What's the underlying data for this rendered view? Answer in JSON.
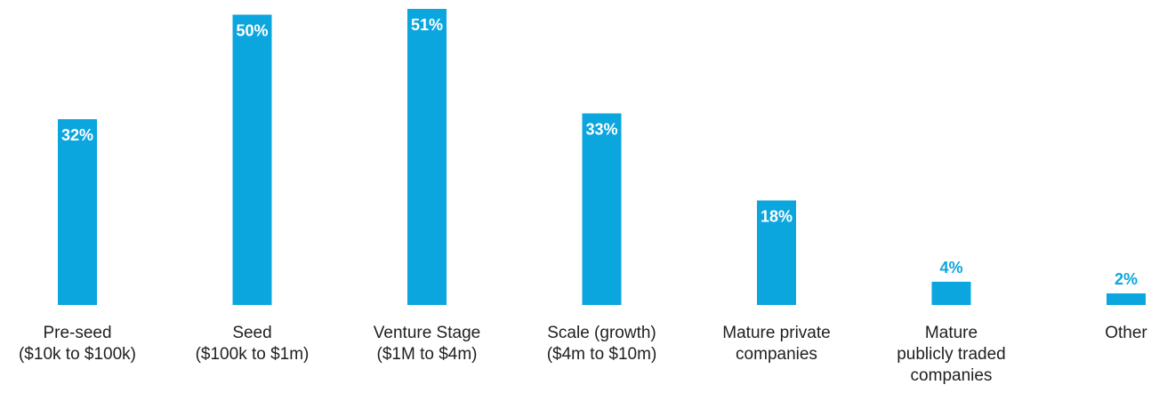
{
  "chart_data": {
    "type": "bar",
    "categories": [
      [
        "Pre-seed",
        "($10k to $100k)"
      ],
      [
        "Seed",
        "($100k to $1m)"
      ],
      [
        "Venture Stage",
        "($1M to $4m)"
      ],
      [
        "Scale (growth)",
        "($4m to $10m)"
      ],
      [
        "Mature private",
        "companies"
      ],
      [
        "Mature",
        "publicly traded",
        "companies"
      ],
      [
        "Other"
      ]
    ],
    "values": [
      32,
      50,
      51,
      33,
      18,
      4,
      2
    ],
    "value_labels": [
      "32%",
      "50%",
      "51%",
      "33%",
      "18%",
      "4%",
      "2%"
    ],
    "title": "",
    "xlabel": "",
    "ylabel": "",
    "ylim": [
      0,
      51
    ],
    "grid": false,
    "legend": "none"
  },
  "colors": {
    "bar": "#0ca6df",
    "label_inside": "#ffffff",
    "label_outside": "#0ca6df",
    "axis_text": "#1f1f1f"
  }
}
